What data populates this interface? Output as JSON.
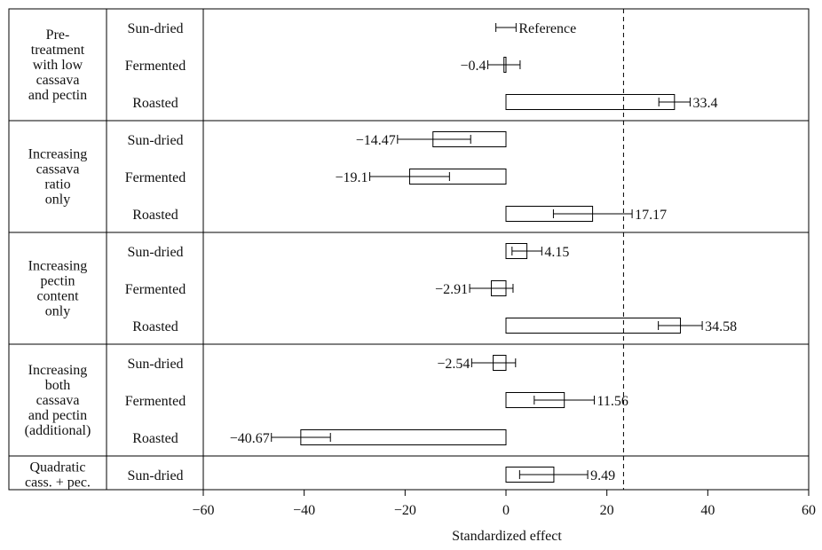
{
  "chart_data": {
    "type": "bar",
    "orientation": "horizontal",
    "xlabel": "Standardized effect",
    "xlim": [
      -60,
      60
    ],
    "xticks": [
      -60,
      -40,
      -20,
      0,
      20,
      40,
      60
    ],
    "tick_labels": [
      "−60",
      "−40",
      "−20",
      "0",
      "20",
      "40",
      "60"
    ],
    "threshold": 23.3,
    "reference_label": "Reference",
    "groups": [
      {
        "label_lines": [
          "Pre-",
          "treatment",
          "with low",
          "cassava",
          "and pectin"
        ],
        "rows": [
          {
            "category": "Sun-dried",
            "value": 0,
            "err_low": -2,
            "err_high": 2,
            "label": "Reference",
            "reference": true
          },
          {
            "category": "Fermented",
            "value": -0.4,
            "err_low": -3.6,
            "err_high": 2.8,
            "label": "−0.4"
          },
          {
            "category": "Roasted",
            "value": 33.4,
            "err_low": 30.3,
            "err_high": 36.5,
            "label": "33.4"
          }
        ]
      },
      {
        "label_lines": [
          "Increasing",
          "cassava",
          "ratio",
          "only"
        ],
        "rows": [
          {
            "category": "Sun-dried",
            "value": -14.47,
            "err_low": -21.5,
            "err_high": -7.0,
            "label": "−14.47"
          },
          {
            "category": "Fermented",
            "value": -19.1,
            "err_low": -27.0,
            "err_high": -11.2,
            "label": "−19.1"
          },
          {
            "category": "Roasted",
            "value": 17.17,
            "err_low": 9.4,
            "err_high": 25.0,
            "label": "17.17"
          }
        ]
      },
      {
        "label_lines": [
          "Increasing",
          "pectin",
          "content",
          "only"
        ],
        "rows": [
          {
            "category": "Sun-dried",
            "value": 4.15,
            "err_low": 1.2,
            "err_high": 7.1,
            "label": "4.15"
          },
          {
            "category": "Fermented",
            "value": -2.91,
            "err_low": -7.2,
            "err_high": 1.4,
            "label": "−2.91"
          },
          {
            "category": "Roasted",
            "value": 34.58,
            "err_low": 30.2,
            "err_high": 38.9,
            "label": "34.58"
          }
        ]
      },
      {
        "label_lines": [
          "Increasing",
          "both",
          "cassava",
          "and pectin",
          "(additional)"
        ],
        "rows": [
          {
            "category": "Sun-dried",
            "value": -2.54,
            "err_low": -6.8,
            "err_high": 1.9,
            "label": "−2.54"
          },
          {
            "category": "Fermented",
            "value": 11.56,
            "err_low": 5.6,
            "err_high": 17.5,
            "label": "11.56"
          },
          {
            "category": "Roasted",
            "value": -40.67,
            "err_low": -46.5,
            "err_high": -34.8,
            "label": "−40.67"
          }
        ]
      },
      {
        "label_lines": [
          "Quadratic",
          "cass. + pec."
        ],
        "rows": [
          {
            "category": "Sun-dried",
            "value": 9.49,
            "err_low": 2.7,
            "err_high": 16.2,
            "label": "9.49"
          }
        ]
      }
    ]
  }
}
